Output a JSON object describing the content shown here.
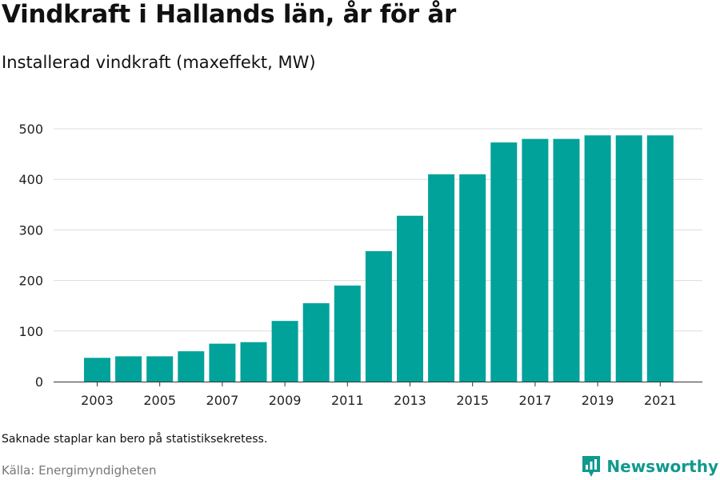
{
  "title": "Vindkraft i Hallands län, år för år",
  "subtitle": "Installerad vindkraft (maxeffekt, MW)",
  "note": "Saknade staplar kan bero på statistiksekretess.",
  "source": "Källa: Energimyndigheten",
  "brand": {
    "name": "Newsworthy",
    "icon": "newsworthy-logo-icon",
    "color": "#11998e"
  },
  "chart_data": {
    "type": "bar",
    "categories": [
      "2003",
      "2004",
      "2005",
      "2006",
      "2007",
      "2008",
      "2009",
      "2010",
      "2011",
      "2012",
      "2013",
      "2014",
      "2015",
      "2016",
      "2017",
      "2018",
      "2019",
      "2020",
      "2021"
    ],
    "values": [
      47,
      50,
      50,
      60,
      75,
      78,
      120,
      155,
      190,
      258,
      328,
      410,
      410,
      473,
      480,
      480,
      487,
      487,
      487
    ],
    "xticks": [
      "2003",
      "2005",
      "2007",
      "2009",
      "2011",
      "2013",
      "2015",
      "2017",
      "2019",
      "2021"
    ],
    "yticks": [
      0,
      100,
      200,
      300,
      400,
      500
    ],
    "ylim": [
      0,
      500
    ],
    "grid": true,
    "bar_color": "#00a29a",
    "xlabel": "",
    "ylabel": ""
  }
}
